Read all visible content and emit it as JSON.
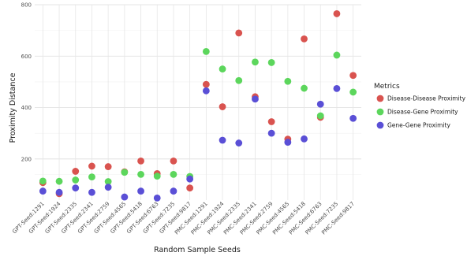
{
  "chart_data": {
    "type": "scatter",
    "xlabel": "Random Sample Seeds",
    "ylabel": "Proximity Distance",
    "categories": [
      "GPT-Seed:1291",
      "GPT-Seed:1924",
      "GPT-Seed:2335",
      "GPT-Seed:2341",
      "GPT-Seed:2759",
      "GPT-Seed:4565",
      "GPT-Seed:5418",
      "GPT-Seed:6763",
      "GPT-Seed:7235",
      "GPT-Seed:9817",
      "PMC-Seed:1291",
      "PMC-Seed:1924",
      "PMC-Seed:2335",
      "PMC-Seed:2341",
      "PMC-Seed:2759",
      "PMC-Seed:4565",
      "PMC-Seed:5418",
      "PMC-Seed:6763",
      "PMC-Seed:7235",
      "PMC-Seed:9817"
    ],
    "yticks": [
      200,
      400,
      600,
      800
    ],
    "ylim": [
      40,
      800
    ],
    "grid": true,
    "legend_title": "Metrics",
    "legend_position": "right",
    "series": [
      {
        "name": "Disease-Disease Proximity",
        "color": "#d9534f",
        "values": [
          108,
          65,
          152,
          172,
          170,
          150,
          192,
          143,
          192,
          87,
          490,
          403,
          690,
          442,
          345,
          277,
          667,
          362,
          765,
          525
        ]
      },
      {
        "name": "Disease-Gene Proximity",
        "color": "#5cd65c",
        "values": [
          114,
          113,
          118,
          130,
          112,
          148,
          140,
          133,
          140,
          132,
          618,
          550,
          505,
          577,
          575,
          502,
          475,
          368,
          604,
          460
        ]
      },
      {
        "name": "Gene-Gene Proximity",
        "color": "#5a4fd6",
        "values": [
          75,
          70,
          87,
          70,
          90,
          52,
          75,
          48,
          75,
          122,
          465,
          273,
          262,
          433,
          300,
          265,
          278,
          413,
          474,
          358
        ]
      }
    ]
  }
}
